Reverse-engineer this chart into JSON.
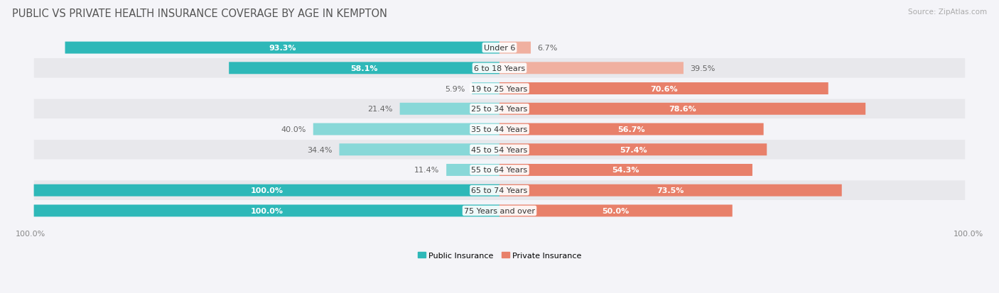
{
  "title": "PUBLIC VS PRIVATE HEALTH INSURANCE COVERAGE BY AGE IN KEMPTON",
  "source": "Source: ZipAtlas.com",
  "categories": [
    "Under 6",
    "6 to 18 Years",
    "19 to 25 Years",
    "25 to 34 Years",
    "35 to 44 Years",
    "45 to 54 Years",
    "55 to 64 Years",
    "65 to 74 Years",
    "75 Years and over"
  ],
  "public_values": [
    93.3,
    58.1,
    5.9,
    21.4,
    40.0,
    34.4,
    11.4,
    100.0,
    100.0
  ],
  "private_values": [
    6.7,
    39.5,
    70.6,
    78.6,
    56.7,
    57.4,
    54.3,
    73.5,
    50.0
  ],
  "public_color_dark": "#2eb8b8",
  "public_color_light": "#88d8d8",
  "private_color_dark": "#e8806a",
  "private_color_light": "#f0b0a0",
  "row_bg_color_dark": "#e8e8ec",
  "row_bg_color_light": "#f4f4f8",
  "fig_bg_color": "#f4f4f8",
  "axis_label_left": "100.0%",
  "axis_label_right": "100.0%",
  "legend_public": "Public Insurance",
  "legend_private": "Private Insurance",
  "title_fontsize": 10.5,
  "source_fontsize": 7.5,
  "label_fontsize": 8,
  "category_fontsize": 8,
  "axis_fontsize": 8,
  "max_value": 100.0,
  "bar_height": 0.55,
  "figsize": [
    14.06,
    4.14
  ]
}
